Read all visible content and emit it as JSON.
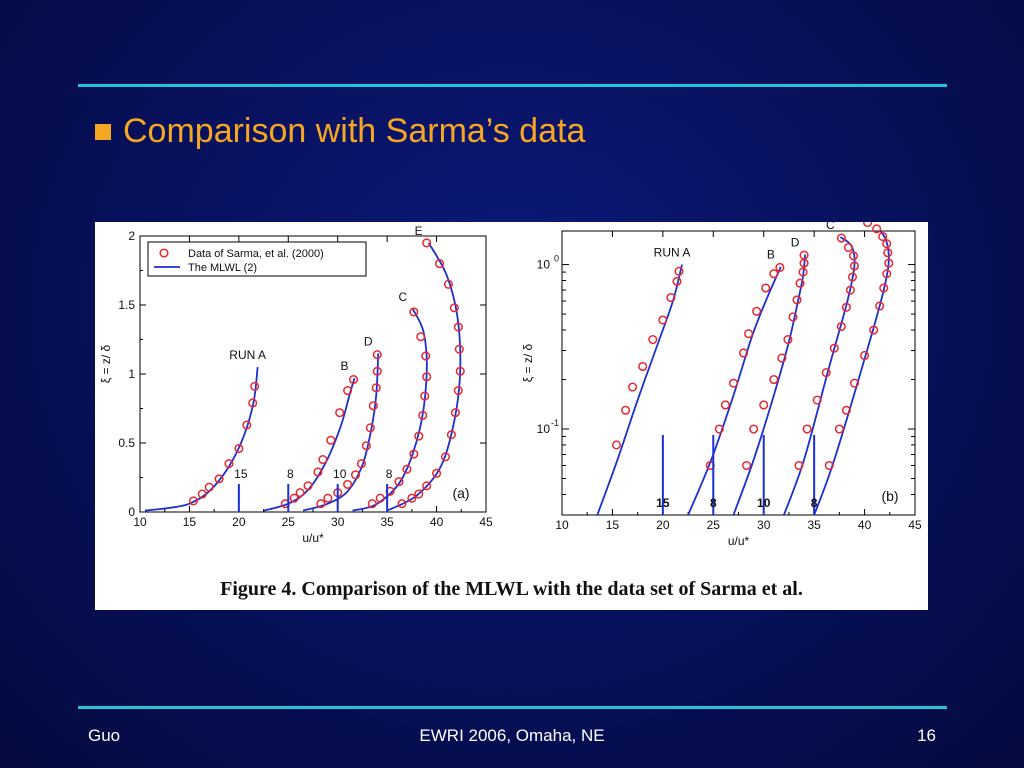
{
  "slide": {
    "title": "Comparison with Sarma’s data",
    "accent_color": "#f5a623",
    "rule_color": "#23c3dc",
    "background_color": "#07105a"
  },
  "figure": {
    "caption": "Figure 4.  Comparison of the MLWL with the data set of Sarma et al."
  },
  "footer": {
    "left": "Guo",
    "center": "EWRI 2006, Omaha, NE",
    "right": "16"
  },
  "chart_data": [
    {
      "type": "line",
      "panel_label": "(a)",
      "xlabel": "u/u*",
      "ylabel": "ξ = z/ δ",
      "xlim": [
        10,
        45
      ],
      "ylim": [
        0,
        2
      ],
      "x_ticks": [
        "10",
        "15",
        "20",
        "25",
        "30",
        "35",
        "40",
        "45"
      ],
      "y_ticks": [
        "0",
        "0.5",
        "1",
        "1.5",
        "2"
      ],
      "legend": {
        "position": "top-left",
        "entries": [
          "Data of Sarma, et al. (2000)",
          "The MLWL (2)"
        ]
      },
      "data_color": "#e8282e",
      "curve_color": "#1b2fd4",
      "series": [
        {
          "name": "RUN A",
          "offset_label": "15",
          "offset_x": 20,
          "points": [
            [
              15.4,
              0.08
            ],
            [
              16.3,
              0.13
            ],
            [
              17,
              0.18
            ],
            [
              18,
              0.24
            ],
            [
              19,
              0.35
            ],
            [
              20,
              0.46
            ],
            [
              20.8,
              0.63
            ],
            [
              21.4,
              0.79
            ],
            [
              21.6,
              0.91
            ]
          ],
          "curve": [
            [
              10.5,
              0.01
            ],
            [
              13,
              0.03
            ],
            [
              15,
              0.06
            ],
            [
              17,
              0.15
            ],
            [
              19,
              0.33
            ],
            [
              20.5,
              0.55
            ],
            [
              21.5,
              0.8
            ],
            [
              21.9,
              1.05
            ]
          ]
        },
        {
          "name": "B",
          "offset_label": "8",
          "offset_x": 25,
          "points": [
            [
              24.7,
              0.06
            ],
            [
              25.6,
              0.1
            ],
            [
              26.2,
              0.14
            ],
            [
              27,
              0.19
            ],
            [
              28,
              0.29
            ],
            [
              28.5,
              0.38
            ],
            [
              29.3,
              0.52
            ],
            [
              30.2,
              0.72
            ],
            [
              31,
              0.88
            ],
            [
              31.6,
              0.96
            ]
          ],
          "curve": [
            [
              22.5,
              0.01
            ],
            [
              25,
              0.06
            ],
            [
              27,
              0.16
            ],
            [
              28.8,
              0.36
            ],
            [
              30.3,
              0.62
            ],
            [
              31.2,
              0.85
            ],
            [
              31.7,
              0.97
            ]
          ]
        },
        {
          "name": "D",
          "offset_label": "10",
          "offset_x": 30,
          "points": [
            [
              28.3,
              0.06
            ],
            [
              29,
              0.1
            ],
            [
              30,
              0.14
            ],
            [
              31,
              0.2
            ],
            [
              31.8,
              0.27
            ],
            [
              32.4,
              0.35
            ],
            [
              32.9,
              0.48
            ],
            [
              33.3,
              0.61
            ],
            [
              33.6,
              0.77
            ],
            [
              33.9,
              0.9
            ],
            [
              34,
              1.02
            ],
            [
              34,
              1.14
            ]
          ],
          "curve": [
            [
              26.5,
              0.01
            ],
            [
              29,
              0.06
            ],
            [
              31,
              0.15
            ],
            [
              32.5,
              0.34
            ],
            [
              33.4,
              0.6
            ],
            [
              33.9,
              0.85
            ],
            [
              34.1,
              1.15
            ]
          ]
        },
        {
          "name": "C",
          "offset_label": "8",
          "offset_x": 35,
          "points": [
            [
              33.5,
              0.06
            ],
            [
              34.3,
              0.1
            ],
            [
              35.3,
              0.15
            ],
            [
              36.2,
              0.22
            ],
            [
              37,
              0.31
            ],
            [
              37.7,
              0.42
            ],
            [
              38.2,
              0.55
            ],
            [
              38.6,
              0.7
            ],
            [
              38.8,
              0.84
            ],
            [
              39,
              0.98
            ],
            [
              38.9,
              1.13
            ],
            [
              38.4,
              1.27
            ],
            [
              37.7,
              1.45
            ]
          ],
          "curve": [
            [
              31.5,
              0.01
            ],
            [
              34,
              0.06
            ],
            [
              36.5,
              0.24
            ],
            [
              38.3,
              0.6
            ],
            [
              39,
              1.0
            ],
            [
              38.7,
              1.3
            ],
            [
              37.6,
              1.47
            ]
          ]
        },
        {
          "name": "E",
          "offset_label": "",
          "offset_x": null,
          "points": [
            [
              36.5,
              0.06
            ],
            [
              37.5,
              0.1
            ],
            [
              38.2,
              0.13
            ],
            [
              39,
              0.19
            ],
            [
              40,
              0.28
            ],
            [
              40.9,
              0.4
            ],
            [
              41.5,
              0.56
            ],
            [
              41.9,
              0.72
            ],
            [
              42.2,
              0.88
            ],
            [
              42.4,
              1.02
            ],
            [
              42.3,
              1.18
            ],
            [
              42.2,
              1.34
            ],
            [
              41.8,
              1.48
            ],
            [
              41.2,
              1.65
            ],
            [
              40.3,
              1.8
            ],
            [
              39,
              1.95
            ]
          ],
          "curve": [
            [
              35,
              0.01
            ],
            [
              38,
              0.12
            ],
            [
              40.5,
              0.34
            ],
            [
              41.9,
              0.7
            ],
            [
              42.4,
              1.05
            ],
            [
              42.1,
              1.42
            ],
            [
              41,
              1.72
            ],
            [
              39.2,
              1.95
            ]
          ]
        }
      ]
    },
    {
      "type": "line",
      "panel_label": "(b)",
      "xlabel": "u/u*",
      "ylabel": "ξ = z/ δ",
      "xlim": [
        10,
        45
      ],
      "yscale": "log",
      "ylim": [
        0.03,
        1.6
      ],
      "x_ticks": [
        "10",
        "15",
        "20",
        "25",
        "30",
        "35",
        "40",
        "45"
      ],
      "y_ticks": [
        "10^-1",
        "10^0"
      ],
      "data_color": "#e8282e",
      "curve_color": "#1b2fd4",
      "series": [
        {
          "name": "RUN A",
          "offset_label": "15",
          "offset_x": 20,
          "points": [
            [
              15.4,
              0.08
            ],
            [
              16.3,
              0.13
            ],
            [
              17,
              0.18
            ],
            [
              18,
              0.24
            ],
            [
              19,
              0.35
            ],
            [
              20,
              0.46
            ],
            [
              20.8,
              0.63
            ],
            [
              21.4,
              0.79
            ],
            [
              21.6,
              0.91
            ]
          ],
          "curve": [
            [
              13.5,
              0.03
            ],
            [
              15.5,
              0.065
            ],
            [
              17.5,
              0.15
            ],
            [
              19.5,
              0.33
            ],
            [
              21,
              0.6
            ],
            [
              21.9,
              1.0
            ]
          ]
        },
        {
          "name": "B",
          "offset_label": "8",
          "offset_x": 25,
          "points": [
            [
              24.7,
              0.06
            ],
            [
              25.6,
              0.1
            ],
            [
              26.2,
              0.14
            ],
            [
              27,
              0.19
            ],
            [
              28,
              0.29
            ],
            [
              28.5,
              0.38
            ],
            [
              29.3,
              0.52
            ],
            [
              30.2,
              0.72
            ],
            [
              31,
              0.88
            ],
            [
              31.6,
              0.96
            ]
          ],
          "curve": [
            [
              22.5,
              0.03
            ],
            [
              24.8,
              0.065
            ],
            [
              27,
              0.16
            ],
            [
              28.8,
              0.36
            ],
            [
              30.3,
              0.62
            ],
            [
              31.7,
              0.97
            ]
          ]
        },
        {
          "name": "D",
          "offset_label": "10",
          "offset_x": 30,
          "points": [
            [
              28.3,
              0.06
            ],
            [
              29,
              0.1
            ],
            [
              30,
              0.14
            ],
            [
              31,
              0.2
            ],
            [
              31.8,
              0.27
            ],
            [
              32.4,
              0.35
            ],
            [
              32.9,
              0.48
            ],
            [
              33.3,
              0.61
            ],
            [
              33.6,
              0.77
            ],
            [
              33.9,
              0.9
            ],
            [
              34,
              1.02
            ],
            [
              34,
              1.14
            ]
          ],
          "curve": [
            [
              27,
              0.03
            ],
            [
              29,
              0.065
            ],
            [
              31,
              0.16
            ],
            [
              32.5,
              0.34
            ],
            [
              33.4,
              0.6
            ],
            [
              33.9,
              0.85
            ],
            [
              34.1,
              1.15
            ]
          ]
        },
        {
          "name": "C",
          "offset_label": "8",
          "offset_x": 35,
          "points": [
            [
              33.5,
              0.06
            ],
            [
              34.3,
              0.1
            ],
            [
              35.3,
              0.15
            ],
            [
              36.2,
              0.22
            ],
            [
              37,
              0.31
            ],
            [
              37.7,
              0.42
            ],
            [
              38.2,
              0.55
            ],
            [
              38.6,
              0.7
            ],
            [
              38.8,
              0.84
            ],
            [
              39,
              0.98
            ],
            [
              38.9,
              1.13
            ],
            [
              38.4,
              1.27
            ],
            [
              37.7,
              1.45
            ]
          ],
          "curve": [
            [
              32,
              0.03
            ],
            [
              34,
              0.065
            ],
            [
              36.5,
              0.24
            ],
            [
              38.3,
              0.6
            ],
            [
              39,
              1.0
            ],
            [
              38.7,
              1.3
            ],
            [
              37.6,
              1.47
            ]
          ]
        },
        {
          "name": "E",
          "offset_label": "",
          "offset_x": null,
          "points": [
            [
              36.5,
              0.06
            ],
            [
              37.5,
              0.1
            ],
            [
              38.2,
              0.13
            ],
            [
              39,
              0.19
            ],
            [
              40,
              0.28
            ],
            [
              40.9,
              0.4
            ],
            [
              41.5,
              0.56
            ],
            [
              41.9,
              0.72
            ],
            [
              42.2,
              0.88
            ],
            [
              42.4,
              1.02
            ],
            [
              42.3,
              1.18
            ],
            [
              42.2,
              1.34
            ],
            [
              41.8,
              1.48
            ],
            [
              41.2,
              1.65
            ],
            [
              40.3,
              1.8
            ],
            [
              39,
              1.95
            ]
          ],
          "curve": [
            [
              35,
              0.03
            ],
            [
              37,
              0.065
            ],
            [
              40.5,
              0.34
            ],
            [
              41.9,
              0.7
            ],
            [
              42.4,
              1.05
            ],
            [
              42.1,
              1.42
            ],
            [
              41,
              1.72
            ],
            [
              39.5,
              1.9
            ]
          ]
        }
      ]
    }
  ]
}
